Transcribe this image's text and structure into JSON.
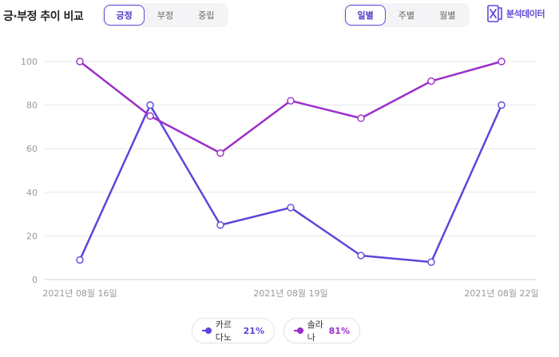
{
  "header": {
    "title": "긍·부정 추이 비교",
    "sentiment_tabs": [
      {
        "label": "긍정",
        "active": true
      },
      {
        "label": "부정",
        "active": false
      },
      {
        "label": "중립",
        "active": false
      }
    ],
    "period_tabs": [
      {
        "label": "일별",
        "active": true
      },
      {
        "label": "주별",
        "active": false
      },
      {
        "label": "월별",
        "active": false
      }
    ],
    "excel_label": "분석데이터"
  },
  "legend": [
    {
      "name": "카르다노",
      "percent": "21%",
      "color": "#5b47d9"
    },
    {
      "name": "솔라나",
      "percent": "81%",
      "color": "#9b2fc9"
    }
  ],
  "chart_data": {
    "type": "line",
    "title": "",
    "xlabel": "",
    "ylabel": "",
    "x": [
      "2021-08-16",
      "2021-08-17",
      "2021-08-18",
      "2021-08-19",
      "2021-08-20",
      "2021-08-21",
      "2021-08-22"
    ],
    "x_tick_labels": [
      {
        "index": 0,
        "label": "2021년 08월 16일"
      },
      {
        "index": 3,
        "label": "2021년 08월 19일"
      },
      {
        "index": 6,
        "label": "2021년 08월 22일"
      }
    ],
    "ylim": [
      0,
      100
    ],
    "yticks": [
      0,
      20,
      40,
      60,
      80,
      100
    ],
    "grid": true,
    "legend_position": "bottom-center",
    "series": [
      {
        "name": "카르다노",
        "color": "#5b47d9",
        "values": [
          9,
          80,
          25,
          33,
          11,
          8,
          80
        ]
      },
      {
        "name": "솔라나",
        "color": "#9b2fc9",
        "values": [
          100,
          75,
          58,
          82,
          74,
          91,
          100
        ]
      }
    ]
  }
}
